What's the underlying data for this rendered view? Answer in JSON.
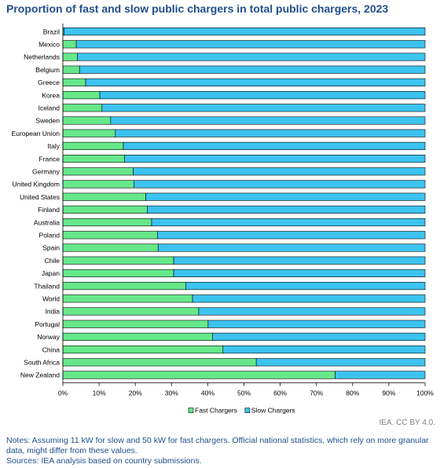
{
  "title": "Proportion of fast and slow public chargers in total public chargers, 2023",
  "credit": "IEA. CC BY 4.0.",
  "notes": "Notes: Assuming 11 kW for slow and 50 kW for fast chargers. Official national statistics, which rely on more granular data, might differ from these values.",
  "sources": "Sources: IEA analysis based on country submissions.",
  "colors": {
    "fast": "#66e88a",
    "slow": "#3cc3f0",
    "axis": "#000000",
    "grid": "#d9d9d9"
  },
  "chart_data": {
    "type": "bar",
    "orientation": "horizontal",
    "stacked": true,
    "categories": [
      "Brazil",
      "Mexico",
      "Netherlands",
      "Belgium",
      "Greece",
      "Korea",
      "Iceland",
      "Sweden",
      "European Union",
      "Italy",
      "France",
      "Germany",
      "United Kingdom",
      "United States",
      "Finland",
      "Australia",
      "Poland",
      "Spain",
      "Chile",
      "Japan",
      "Thailand",
      "World",
      "India",
      "Portugal",
      "Norway",
      "China",
      "South Africa",
      "New Zealand"
    ],
    "series": [
      {
        "name": "Fast Chargers",
        "values": [
          0.3,
          3.7,
          4,
          4.6,
          6.3,
          10.2,
          10.8,
          13.2,
          14.5,
          16.7,
          17,
          19.4,
          19.6,
          22.9,
          23.3,
          24.5,
          26.1,
          26.3,
          30.6,
          30.6,
          33.9,
          35.8,
          37.5,
          40.1,
          41.3,
          44.2,
          53.4,
          75.2
        ]
      },
      {
        "name": "Slow Chargers",
        "values": [
          99.7,
          96.3,
          96,
          95.4,
          93.7,
          89.8,
          89.2,
          86.8,
          85.5,
          83.3,
          83,
          80.6,
          80.4,
          77.1,
          76.7,
          75.5,
          73.9,
          73.7,
          69.4,
          69.4,
          66.1,
          64.2,
          62.5,
          59.9,
          58.7,
          55.8,
          46.6,
          24.8
        ]
      }
    ],
    "xlim": [
      0,
      100
    ],
    "xticks": [
      "0%",
      "10%",
      "20%",
      "30%",
      "40%",
      "50%",
      "60%",
      "70%",
      "80%",
      "90%",
      "100%"
    ],
    "grid": false,
    "legend": "bottom-center"
  }
}
